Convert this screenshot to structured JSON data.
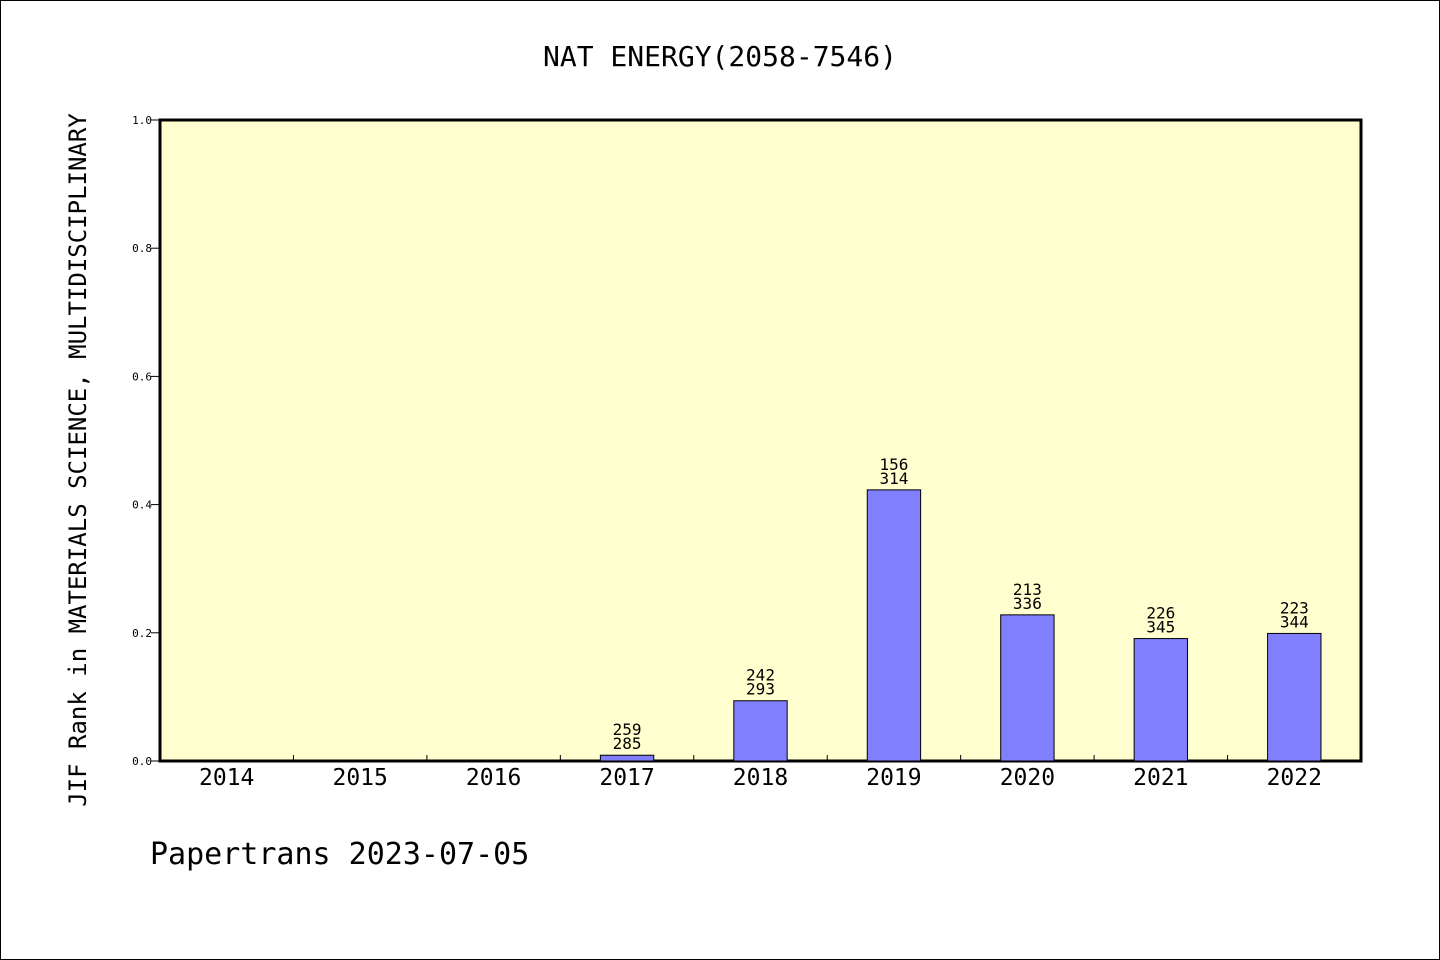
{
  "chart_data": {
    "type": "bar",
    "title": "NAT ENERGY(2058-7546)",
    "xlabel": "",
    "ylabel": "JIF Rank in MATERIALS SCIENCE, MULTIDISCIPLINARY",
    "ylim": [
      0.0,
      1.0
    ],
    "yticks": [
      "0.0",
      "0.2",
      "0.4",
      "0.6",
      "0.8",
      "1.0"
    ],
    "categories": [
      "2014",
      "2015",
      "2016",
      "2017",
      "2018",
      "2019",
      "2020",
      "2021",
      "2022"
    ],
    "values": [
      null,
      null,
      null,
      0.009,
      0.094,
      0.423,
      0.228,
      0.191,
      0.199
    ],
    "rank": [
      null,
      null,
      null,
      "259",
      "242",
      "156",
      "213",
      "226",
      "223"
    ],
    "total": [
      null,
      null,
      null,
      "285",
      "293",
      "314",
      "336",
      "345",
      "344"
    ],
    "colors": {
      "plot_bg": "#ffffd0",
      "bar": "#8080ff",
      "axis": "#000000"
    },
    "grid": false,
    "legend": "none"
  },
  "footer": "Papertrans 2023-07-05"
}
